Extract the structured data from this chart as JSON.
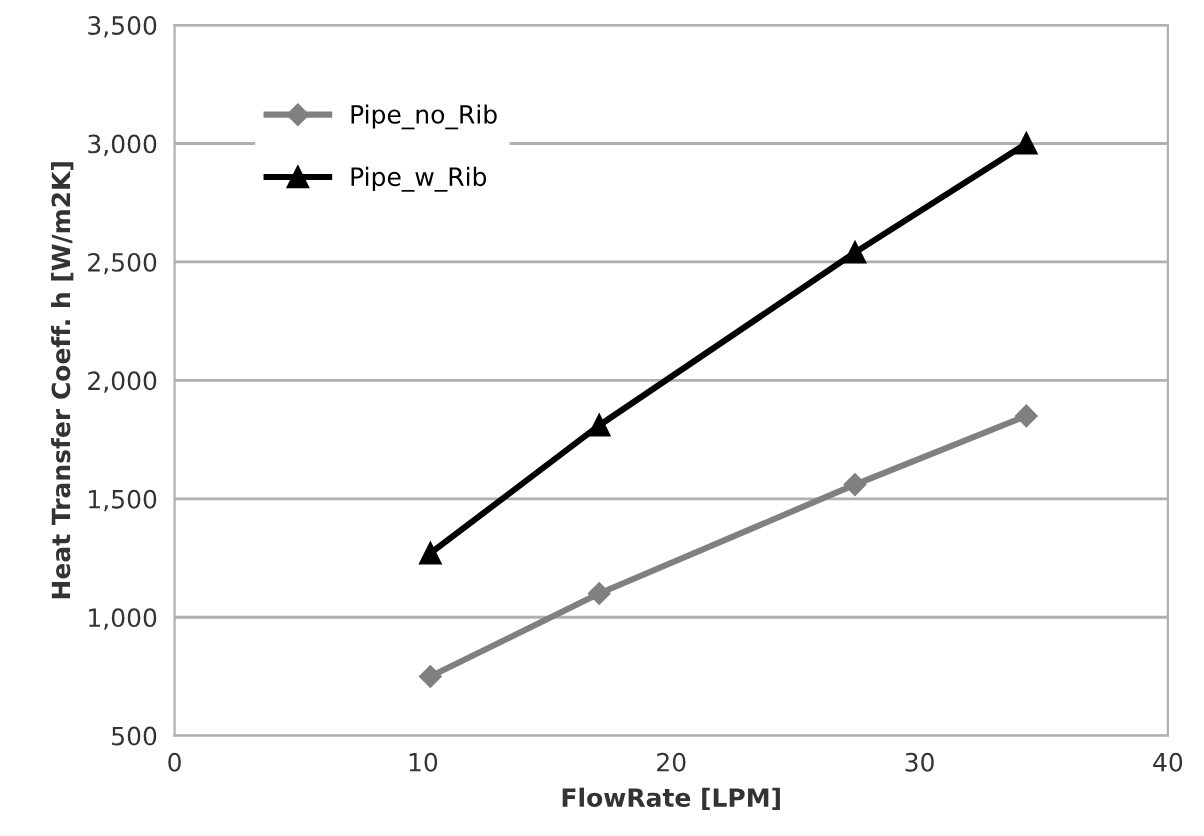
{
  "chart_data": {
    "type": "line",
    "xlabel": "FlowRate [LPM]",
    "ylabel": "Heat Transfer Coeff. h [W/m2K]",
    "x": [
      10.3,
      17.1,
      27.4,
      34.3
    ],
    "series": [
      {
        "name": "Pipe_no_Rib",
        "color": "#808080",
        "values": [
          750,
          1100,
          1560,
          1850
        ],
        "marker": "diamond"
      },
      {
        "name": "Pipe_w_Rib",
        "color": "#000000",
        "values": [
          1270,
          1810,
          2540,
          3000
        ],
        "marker": "triangle"
      }
    ],
    "xlim": [
      0,
      40
    ],
    "xticks": [
      0,
      10,
      20,
      30,
      40
    ],
    "ylim": [
      500,
      3500
    ],
    "yticks": [
      {
        "value": 500,
        "label": "500"
      },
      {
        "value": 1000,
        "label": "1,000"
      },
      {
        "value": 1500,
        "label": "1,500"
      },
      {
        "value": 2000,
        "label": "2,000"
      },
      {
        "value": 2500,
        "label": "2,500"
      },
      {
        "value": 3000,
        "label": "3,000"
      },
      {
        "value": 3500,
        "label": "3,500"
      }
    ],
    "grid": "y",
    "legend": "top left",
    "line_style": "solid"
  }
}
